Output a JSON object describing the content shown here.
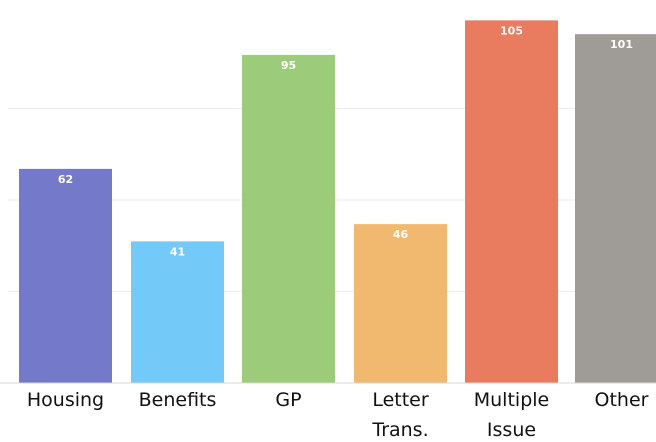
{
  "chart_data": {
    "type": "bar",
    "categories": [
      [
        "Housing"
      ],
      [
        "Benefits"
      ],
      [
        "GP"
      ],
      [
        "Letter",
        "Trans."
      ],
      [
        "Multiple",
        "Issue"
      ],
      [
        "Other"
      ]
    ],
    "values": [
      62,
      41,
      95,
      46,
      105,
      101
    ],
    "colors": [
      "#7479c9",
      "#73c9f7",
      "#9ccb79",
      "#f1b96f",
      "#e97b5e",
      "#9f9b96"
    ],
    "ylim": [
      0,
      108
    ],
    "grid": true,
    "grid_values": [
      26.5,
      53,
      79.5
    ],
    "legend": "none",
    "axis_color": "#d7d7d7",
    "grid_color": "#ececec"
  }
}
